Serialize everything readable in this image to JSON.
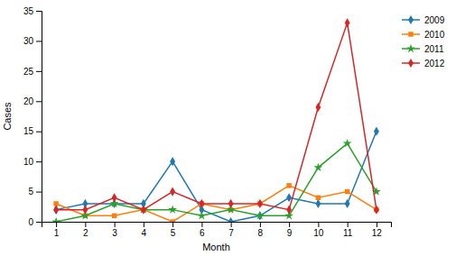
{
  "chart_data": {
    "type": "line",
    "xlabel": "Month",
    "ylabel": "Cases",
    "x": [
      1,
      2,
      3,
      4,
      5,
      6,
      7,
      8,
      9,
      10,
      11,
      12
    ],
    "series": [
      {
        "name": "2009",
        "values": [
          2,
          3,
          3,
          3,
          10,
          2,
          0,
          1,
          4,
          3,
          3,
          15
        ],
        "marker": "diamond"
      },
      {
        "name": "2010",
        "values": [
          3,
          1,
          1,
          2,
          0,
          3,
          2,
          3,
          6,
          4,
          5,
          2
        ],
        "marker": "square"
      },
      {
        "name": "2011",
        "values": [
          0,
          1,
          3,
          2,
          2,
          1,
          2,
          1,
          1,
          9,
          13,
          5
        ],
        "marker": "star"
      },
      {
        "name": "2012",
        "values": [
          2,
          2,
          4,
          2,
          5,
          3,
          3,
          3,
          2,
          19,
          33,
          2
        ],
        "marker": "diamond"
      }
    ],
    "xlim": [
      0.5,
      12.5
    ],
    "xticks": [
      1,
      2,
      3,
      4,
      5,
      6,
      7,
      8,
      9,
      10,
      11,
      12
    ],
    "ylim": [
      0,
      35
    ],
    "yticks": [
      0,
      5,
      10,
      15,
      20,
      25,
      30,
      35
    ],
    "grid": false,
    "legend": "upper right"
  }
}
